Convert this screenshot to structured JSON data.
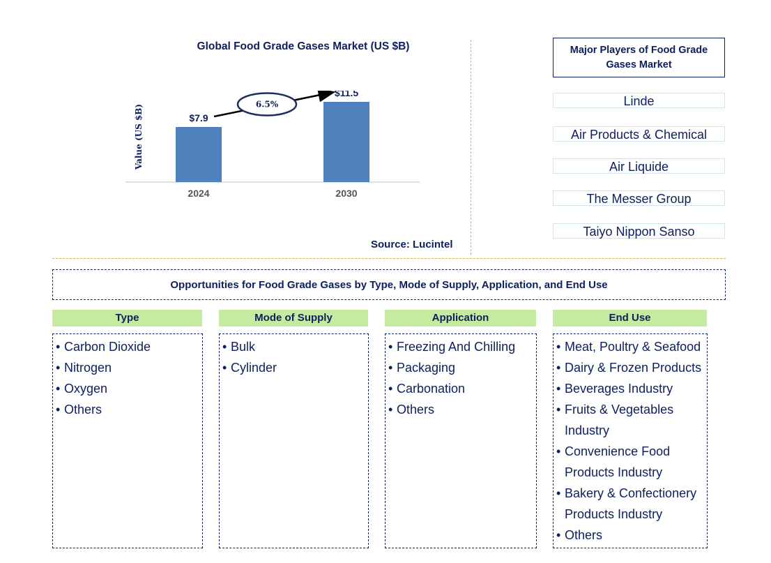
{
  "chart": {
    "title": "Global Food Grade Gases Market (US $B)",
    "source": "Source: Lucintel",
    "cagr_label": "6.5%"
  },
  "chart_data": {
    "type": "bar",
    "categories": [
      "2024",
      "2030"
    ],
    "values": [
      7.9,
      11.5
    ],
    "value_labels": [
      "$7.9",
      "$11.5"
    ],
    "ylabel": "Value (US $B)",
    "xlabel": "",
    "title": "Global Food Grade Gases Market (US $B)",
    "ylim": [
      0,
      13
    ],
    "bar_color": "#4f81bd",
    "annotation": "6.5%"
  },
  "players": {
    "title": "Major Players of Food Grade Gases Market",
    "items": [
      "Linde",
      "Air Products & Chemical",
      "Air Liquide",
      "The Messer Group",
      "Taiyo Nippon Sanso"
    ]
  },
  "opportunities": {
    "title": "Opportunities for Food Grade Gases by Type, Mode of Supply, Application, and End Use",
    "categories": [
      {
        "header": "Type",
        "items": [
          [
            "Carbon Dioxide"
          ],
          [
            "Nitrogen"
          ],
          [
            "Oxygen"
          ],
          [
            "Others"
          ]
        ]
      },
      {
        "header": "Mode of Supply",
        "items": [
          [
            "Bulk"
          ],
          [
            "Cylinder"
          ]
        ]
      },
      {
        "header": "Application",
        "items": [
          [
            "Freezing And Chilling"
          ],
          [
            "Packaging"
          ],
          [
            "Carbonation"
          ],
          [
            "Others"
          ]
        ]
      },
      {
        "header": "End Use",
        "items": [
          [
            "Meat, Poultry & Seafood"
          ],
          [
            "Dairy & Frozen Products"
          ],
          [
            "Beverages Industry"
          ],
          [
            "Fruits & Vegetables",
            "Industry"
          ],
          [
            "Convenience Food",
            "Products Industry"
          ],
          [
            "Bakery & Confectionery",
            "Products Industry"
          ],
          [
            "Others"
          ]
        ]
      }
    ]
  },
  "colors": {
    "text": "#0d1f5c",
    "bar": "#4f81bd",
    "header_green": "#c6eba0",
    "divider": "#e0b04a"
  }
}
